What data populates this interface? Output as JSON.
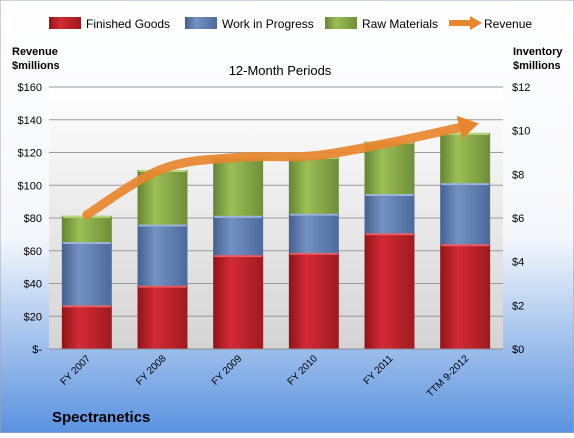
{
  "chart_data": {
    "type": "bar",
    "title": "12-Month Periods",
    "company": "Spectranetics",
    "left_axis_label": [
      "Revenue",
      "$millions"
    ],
    "right_axis_label": [
      "Inventory",
      "$millions"
    ],
    "categories": [
      "FY 2007",
      "FY 2008",
      "FY 2009",
      "FY 2010",
      "FY 2011",
      "TTM 9-2012"
    ],
    "stacked_series": [
      {
        "name": "Finished Goods",
        "values": [
          2.0,
          2.9,
          4.3,
          4.4,
          5.3,
          4.8
        ]
      },
      {
        "name": "Work in Progress",
        "values": [
          2.9,
          2.8,
          1.8,
          1.8,
          1.8,
          2.8
        ]
      },
      {
        "name": "Raw Materials",
        "values": [
          1.2,
          2.5,
          2.7,
          2.6,
          2.4,
          2.3
        ]
      }
    ],
    "line_series": {
      "name": "Revenue",
      "values": [
        82,
        110,
        117,
        118,
        126,
        136
      ]
    },
    "left_axis": {
      "min": 0,
      "max": 160,
      "step": 20,
      "ticks": [
        "$-",
        "$20",
        "$40",
        "$60",
        "$80",
        "$100",
        "$120",
        "$140",
        "$160"
      ]
    },
    "right_axis": {
      "min": 0,
      "max": 12,
      "step": 2,
      "ticks": [
        "$0",
        "$2",
        "$4",
        "$6",
        "$8",
        "$10",
        "$12"
      ]
    },
    "legend_position": "top",
    "grid": true
  },
  "colors": {
    "finished_goods": "#c0202a",
    "work_in_progress": "#5f7fb0",
    "raw_materials": "#8aad45",
    "revenue": "#e8862e",
    "background_top": "#ffffff",
    "background_bottom": "#5a92df",
    "plot_top": "#ffffff",
    "plot_bottom": "#d6d6d6"
  }
}
